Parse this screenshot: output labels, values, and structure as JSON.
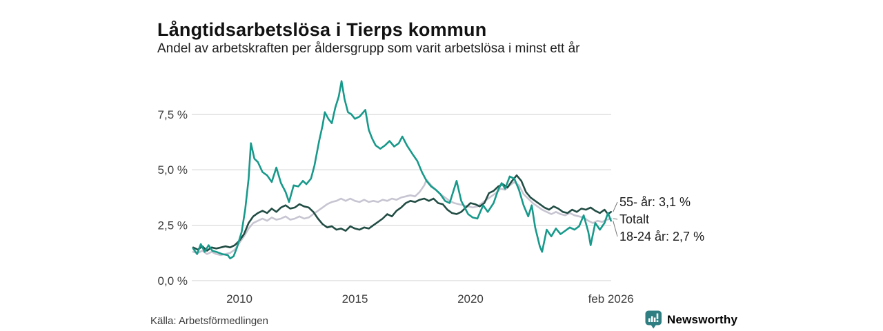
{
  "header": {},
  "footer": {
    "source": "Källa: Arbetsförmedlingen",
    "brand": "Newsworthy",
    "brand_color": "#2e7e82"
  },
  "chart_data": {
    "type": "line",
    "title": "Långtidsarbetslösa i Tierps kommun",
    "subtitle": "Andel av arbetskraften per åldersgrupp som varit arbetslösa i minst ett år",
    "xlabel": "",
    "ylabel": "",
    "grid": true,
    "legend_position": "right-end-annotations",
    "xlim": [
      2008.0,
      2026.12
    ],
    "ylim": [
      0,
      9.3
    ],
    "yticks": [
      {
        "v": 0,
        "label": "0,0 %"
      },
      {
        "v": 2.5,
        "label": "2,5 %"
      },
      {
        "v": 5,
        "label": "5,0 %"
      },
      {
        "v": 7.5,
        "label": "7,5 %"
      }
    ],
    "xticks": [
      {
        "v": 2010,
        "label": "2010"
      },
      {
        "v": 2015,
        "label": "2015"
      },
      {
        "v": 2020,
        "label": "2020"
      },
      {
        "v": 2026.08,
        "label": "feb 2026"
      }
    ],
    "grid_color": "#d9d9d9",
    "series": [
      {
        "name": "55- år",
        "annotation": "55- år: 3,1 %",
        "end_value": 3.1,
        "color": "#224d44",
        "points": [
          [
            2008.0,
            1.5
          ],
          [
            2008.2,
            1.4
          ],
          [
            2008.4,
            1.55
          ],
          [
            2008.6,
            1.35
          ],
          [
            2008.8,
            1.5
          ],
          [
            2009.0,
            1.45
          ],
          [
            2009.2,
            1.5
          ],
          [
            2009.4,
            1.55
          ],
          [
            2009.6,
            1.5
          ],
          [
            2009.8,
            1.6
          ],
          [
            2010.0,
            1.8
          ],
          [
            2010.2,
            2.1
          ],
          [
            2010.4,
            2.6
          ],
          [
            2010.6,
            2.9
          ],
          [
            2010.8,
            3.05
          ],
          [
            2011.0,
            3.15
          ],
          [
            2011.2,
            3.05
          ],
          [
            2011.4,
            3.25
          ],
          [
            2011.6,
            3.1
          ],
          [
            2011.8,
            3.3
          ],
          [
            2012.0,
            3.4
          ],
          [
            2012.2,
            3.25
          ],
          [
            2012.4,
            3.3
          ],
          [
            2012.6,
            3.45
          ],
          [
            2012.8,
            3.35
          ],
          [
            2013.0,
            3.3
          ],
          [
            2013.2,
            3.1
          ],
          [
            2013.4,
            2.8
          ],
          [
            2013.6,
            2.55
          ],
          [
            2013.8,
            2.4
          ],
          [
            2014.0,
            2.45
          ],
          [
            2014.2,
            2.3
          ],
          [
            2014.4,
            2.35
          ],
          [
            2014.6,
            2.25
          ],
          [
            2014.8,
            2.45
          ],
          [
            2015.0,
            2.35
          ],
          [
            2015.2,
            2.3
          ],
          [
            2015.4,
            2.4
          ],
          [
            2015.6,
            2.35
          ],
          [
            2015.8,
            2.5
          ],
          [
            2016.0,
            2.65
          ],
          [
            2016.2,
            2.8
          ],
          [
            2016.4,
            3.0
          ],
          [
            2016.6,
            2.9
          ],
          [
            2016.8,
            3.15
          ],
          [
            2017.0,
            3.3
          ],
          [
            2017.2,
            3.5
          ],
          [
            2017.4,
            3.6
          ],
          [
            2017.6,
            3.55
          ],
          [
            2017.8,
            3.65
          ],
          [
            2018.0,
            3.7
          ],
          [
            2018.2,
            3.6
          ],
          [
            2018.4,
            3.7
          ],
          [
            2018.6,
            3.5
          ],
          [
            2018.8,
            3.45
          ],
          [
            2019.0,
            3.2
          ],
          [
            2019.2,
            3.05
          ],
          [
            2019.4,
            3.0
          ],
          [
            2019.6,
            3.1
          ],
          [
            2019.8,
            3.3
          ],
          [
            2020.0,
            3.5
          ],
          [
            2020.2,
            3.45
          ],
          [
            2020.4,
            3.35
          ],
          [
            2020.6,
            3.5
          ],
          [
            2020.8,
            3.95
          ],
          [
            2021.0,
            4.05
          ],
          [
            2021.2,
            4.25
          ],
          [
            2021.4,
            4.35
          ],
          [
            2021.6,
            4.2
          ],
          [
            2021.8,
            4.5
          ],
          [
            2022.0,
            4.75
          ],
          [
            2022.2,
            4.5
          ],
          [
            2022.4,
            4.0
          ],
          [
            2022.6,
            3.75
          ],
          [
            2022.8,
            3.6
          ],
          [
            2023.0,
            3.45
          ],
          [
            2023.2,
            3.3
          ],
          [
            2023.4,
            3.2
          ],
          [
            2023.6,
            3.35
          ],
          [
            2023.8,
            3.25
          ],
          [
            2024.0,
            3.1
          ],
          [
            2024.2,
            3.05
          ],
          [
            2024.4,
            3.2
          ],
          [
            2024.6,
            3.1
          ],
          [
            2024.8,
            3.25
          ],
          [
            2025.0,
            3.2
          ],
          [
            2025.2,
            3.3
          ],
          [
            2025.4,
            3.15
          ],
          [
            2025.6,
            3.05
          ],
          [
            2025.8,
            3.2
          ],
          [
            2025.95,
            3.0
          ],
          [
            2026.08,
            3.1
          ]
        ]
      },
      {
        "name": "Totalt",
        "annotation": "Totalt",
        "color": "#c7c5d1",
        "points": [
          [
            2008.0,
            1.3
          ],
          [
            2008.2,
            1.25
          ],
          [
            2008.4,
            1.35
          ],
          [
            2008.6,
            1.2
          ],
          [
            2008.8,
            1.3
          ],
          [
            2009.0,
            1.2
          ],
          [
            2009.2,
            1.15
          ],
          [
            2009.4,
            1.2
          ],
          [
            2009.6,
            1.25
          ],
          [
            2009.8,
            1.4
          ],
          [
            2010.0,
            1.7
          ],
          [
            2010.2,
            2.0
          ],
          [
            2010.4,
            2.35
          ],
          [
            2010.6,
            2.6
          ],
          [
            2010.8,
            2.7
          ],
          [
            2011.0,
            2.8
          ],
          [
            2011.2,
            2.7
          ],
          [
            2011.4,
            2.85
          ],
          [
            2011.6,
            2.75
          ],
          [
            2011.8,
            2.8
          ],
          [
            2012.0,
            2.9
          ],
          [
            2012.2,
            2.75
          ],
          [
            2012.4,
            2.8
          ],
          [
            2012.6,
            2.9
          ],
          [
            2012.8,
            2.8
          ],
          [
            2013.0,
            2.85
          ],
          [
            2013.2,
            3.0
          ],
          [
            2013.4,
            3.15
          ],
          [
            2013.6,
            3.3
          ],
          [
            2013.8,
            3.45
          ],
          [
            2014.0,
            3.55
          ],
          [
            2014.2,
            3.6
          ],
          [
            2014.4,
            3.7
          ],
          [
            2014.6,
            3.6
          ],
          [
            2014.8,
            3.7
          ],
          [
            2015.0,
            3.6
          ],
          [
            2015.2,
            3.55
          ],
          [
            2015.4,
            3.65
          ],
          [
            2015.6,
            3.55
          ],
          [
            2015.8,
            3.6
          ],
          [
            2016.0,
            3.55
          ],
          [
            2016.2,
            3.65
          ],
          [
            2016.4,
            3.6
          ],
          [
            2016.6,
            3.7
          ],
          [
            2016.8,
            3.65
          ],
          [
            2017.0,
            3.75
          ],
          [
            2017.2,
            3.8
          ],
          [
            2017.4,
            3.85
          ],
          [
            2017.6,
            3.8
          ],
          [
            2017.8,
            4.0
          ],
          [
            2018.0,
            4.3
          ],
          [
            2018.1,
            4.55
          ],
          [
            2018.3,
            4.3
          ],
          [
            2018.5,
            4.1
          ],
          [
            2018.7,
            3.9
          ],
          [
            2018.9,
            3.75
          ],
          [
            2019.1,
            3.6
          ],
          [
            2019.3,
            3.5
          ],
          [
            2019.5,
            3.45
          ],
          [
            2019.7,
            3.4
          ],
          [
            2019.9,
            3.35
          ],
          [
            2020.1,
            3.3
          ],
          [
            2020.3,
            3.35
          ],
          [
            2020.5,
            3.5
          ],
          [
            2020.7,
            3.65
          ],
          [
            2020.9,
            3.8
          ],
          [
            2021.1,
            3.95
          ],
          [
            2021.3,
            4.15
          ],
          [
            2021.5,
            4.1
          ],
          [
            2021.7,
            4.3
          ],
          [
            2021.9,
            4.45
          ],
          [
            2022.1,
            4.3
          ],
          [
            2022.3,
            3.9
          ],
          [
            2022.5,
            3.7
          ],
          [
            2022.7,
            3.5
          ],
          [
            2022.9,
            3.35
          ],
          [
            2023.1,
            3.2
          ],
          [
            2023.3,
            3.1
          ],
          [
            2023.5,
            3.0
          ],
          [
            2023.7,
            3.1
          ],
          [
            2023.9,
            3.0
          ],
          [
            2024.1,
            2.95
          ],
          [
            2024.3,
            3.05
          ],
          [
            2024.5,
            2.95
          ],
          [
            2024.7,
            2.9
          ],
          [
            2024.9,
            2.85
          ],
          [
            2025.1,
            2.7
          ],
          [
            2025.3,
            2.6
          ],
          [
            2025.5,
            2.7
          ],
          [
            2025.7,
            2.65
          ],
          [
            2025.9,
            2.75
          ],
          [
            2026.08,
            2.8
          ]
        ]
      },
      {
        "name": "18-24 år",
        "annotation": "18-24 år: 2,7 %",
        "end_value": 2.7,
        "color": "#17998b",
        "points": [
          [
            2008.0,
            1.45
          ],
          [
            2008.17,
            1.2
          ],
          [
            2008.33,
            1.65
          ],
          [
            2008.5,
            1.3
          ],
          [
            2008.67,
            1.6
          ],
          [
            2008.83,
            1.35
          ],
          [
            2009.0,
            1.3
          ],
          [
            2009.25,
            1.2
          ],
          [
            2009.5,
            1.15
          ],
          [
            2009.6,
            1.0
          ],
          [
            2009.75,
            1.1
          ],
          [
            2009.9,
            1.5
          ],
          [
            2010.1,
            2.2
          ],
          [
            2010.25,
            3.2
          ],
          [
            2010.4,
            4.6
          ],
          [
            2010.5,
            6.2
          ],
          [
            2010.65,
            5.5
          ],
          [
            2010.8,
            5.35
          ],
          [
            2011.0,
            4.9
          ],
          [
            2011.2,
            4.75
          ],
          [
            2011.4,
            4.45
          ],
          [
            2011.6,
            5.1
          ],
          [
            2011.8,
            4.4
          ],
          [
            2012.0,
            4.0
          ],
          [
            2012.15,
            3.55
          ],
          [
            2012.35,
            4.3
          ],
          [
            2012.55,
            4.25
          ],
          [
            2012.75,
            4.5
          ],
          [
            2012.9,
            4.35
          ],
          [
            2013.1,
            4.6
          ],
          [
            2013.25,
            5.2
          ],
          [
            2013.45,
            6.3
          ],
          [
            2013.6,
            7.0
          ],
          [
            2013.7,
            7.6
          ],
          [
            2013.85,
            7.3
          ],
          [
            2014.0,
            7.1
          ],
          [
            2014.15,
            7.8
          ],
          [
            2014.3,
            8.3
          ],
          [
            2014.42,
            9.0
          ],
          [
            2014.55,
            8.2
          ],
          [
            2014.7,
            7.6
          ],
          [
            2014.85,
            7.5
          ],
          [
            2015.0,
            7.3
          ],
          [
            2015.2,
            7.4
          ],
          [
            2015.45,
            7.7
          ],
          [
            2015.6,
            6.8
          ],
          [
            2015.75,
            6.4
          ],
          [
            2015.9,
            6.1
          ],
          [
            2016.1,
            5.95
          ],
          [
            2016.3,
            6.1
          ],
          [
            2016.5,
            6.3
          ],
          [
            2016.7,
            6.05
          ],
          [
            2016.9,
            6.2
          ],
          [
            2017.05,
            6.5
          ],
          [
            2017.25,
            6.1
          ],
          [
            2017.5,
            5.7
          ],
          [
            2017.7,
            5.4
          ],
          [
            2017.9,
            4.9
          ],
          [
            2018.1,
            4.5
          ],
          [
            2018.3,
            4.25
          ],
          [
            2018.5,
            4.1
          ],
          [
            2018.7,
            3.9
          ],
          [
            2018.9,
            3.6
          ],
          [
            2019.1,
            3.5
          ],
          [
            2019.4,
            4.5
          ],
          [
            2019.6,
            3.6
          ],
          [
            2019.9,
            3.0
          ],
          [
            2020.1,
            2.85
          ],
          [
            2020.3,
            2.8
          ],
          [
            2020.55,
            3.4
          ],
          [
            2020.75,
            3.1
          ],
          [
            2021.0,
            3.5
          ],
          [
            2021.2,
            4.1
          ],
          [
            2021.35,
            4.4
          ],
          [
            2021.5,
            4.15
          ],
          [
            2021.7,
            4.7
          ],
          [
            2021.9,
            4.6
          ],
          [
            2022.1,
            4.1
          ],
          [
            2022.3,
            3.4
          ],
          [
            2022.5,
            2.9
          ],
          [
            2022.65,
            3.4
          ],
          [
            2022.8,
            2.4
          ],
          [
            2023.0,
            1.55
          ],
          [
            2023.1,
            1.3
          ],
          [
            2023.3,
            2.3
          ],
          [
            2023.5,
            2.0
          ],
          [
            2023.7,
            2.35
          ],
          [
            2023.9,
            2.1
          ],
          [
            2024.1,
            2.25
          ],
          [
            2024.3,
            2.4
          ],
          [
            2024.5,
            2.3
          ],
          [
            2024.7,
            2.45
          ],
          [
            2024.9,
            2.95
          ],
          [
            2025.1,
            2.2
          ],
          [
            2025.2,
            1.6
          ],
          [
            2025.4,
            2.6
          ],
          [
            2025.6,
            2.3
          ],
          [
            2025.8,
            2.6
          ],
          [
            2025.95,
            3.05
          ],
          [
            2026.08,
            2.7
          ]
        ]
      }
    ]
  }
}
